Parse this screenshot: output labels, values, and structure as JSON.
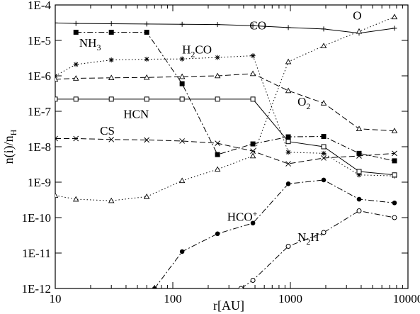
{
  "chart_data": {
    "type": "line",
    "xlabel": "r[AU]",
    "ylabel": "n(i)/n",
    "ylabel_sub": "H",
    "xscale": "log",
    "yscale": "log",
    "xlim": [
      10,
      10000
    ],
    "ylim": [
      1e-12,
      0.0001
    ],
    "x_ticks": [
      10,
      100,
      1000,
      10000
    ],
    "x_tick_labels": [
      "10",
      "100",
      "1000",
      "10000"
    ],
    "y_ticks": [
      1e-12,
      1e-11,
      1e-10,
      1e-09,
      1e-08,
      1e-07,
      1e-06,
      1e-05,
      0.0001
    ],
    "y_tick_labels": [
      "1E-12",
      "1E-11",
      "1E-10",
      "1E-9",
      "1E-8",
      "1E-7",
      "1E-6",
      "1E-5",
      "1E-4"
    ],
    "grid": false,
    "legend": "inline labels",
    "series": [
      {
        "name": "CO",
        "label_parts": [
          [
            "CO",
            ""
          ]
        ],
        "marker": "plus",
        "dash": "solid",
        "x": [
          10,
          15,
          30,
          60,
          120,
          240,
          480,
          960,
          1920,
          3840,
          7680
        ],
        "y": [
          3.1e-05,
          3e-05,
          2.95e-05,
          2.9e-05,
          2.85e-05,
          2.8e-05,
          2.6e-05,
          2.3e-05,
          2.1e-05,
          1.6e-05,
          2.2e-05
        ]
      },
      {
        "name": "O",
        "label_parts": [
          [
            "O",
            ""
          ]
        ],
        "marker": "triangle",
        "dash": "dotted",
        "x": [
          10,
          15,
          30,
          60,
          120,
          240,
          480,
          960,
          1920,
          3840,
          7680
        ],
        "y": [
          4.2e-10,
          3.3e-10,
          3e-10,
          3.9e-10,
          1.1e-09,
          2.3e-09,
          5.5e-09,
          2.5e-06,
          7e-06,
          1.8e-05,
          4.6e-05
        ]
      },
      {
        "name": "NH3",
        "label_parts": [
          [
            "NH",
            ""
          ],
          [
            "3",
            "sub"
          ]
        ],
        "marker": "filled-square",
        "dash": "dashdot",
        "x": [
          15,
          30,
          60,
          120,
          240,
          480,
          960,
          1920,
          3840,
          7680
        ],
        "y": [
          1.7e-05,
          1.7e-05,
          1.7e-05,
          6e-07,
          6e-09,
          1.2e-08,
          1.9e-08,
          1.95e-08,
          6.5e-09,
          4e-09
        ]
      },
      {
        "name": "H2CO",
        "label_parts": [
          [
            "H",
            ""
          ],
          [
            "2",
            "sub"
          ],
          [
            "CO",
            ""
          ]
        ],
        "marker": "star",
        "dash": "dotted",
        "x": [
          10,
          15,
          30,
          60,
          120,
          240,
          480,
          960,
          1920,
          3840,
          7680
        ],
        "y": [
          1e-06,
          2.1e-06,
          2.8e-06,
          2.95e-06,
          3e-06,
          3.3e-06,
          3.7e-06,
          7e-09,
          6.5e-09,
          1.6e-09,
          1.5e-09
        ]
      },
      {
        "name": "O2",
        "label_parts": [
          [
            "O",
            ""
          ],
          [
            "2",
            "sub"
          ]
        ],
        "marker": "triangle",
        "dash": "dashed",
        "x": [
          10,
          15,
          30,
          60,
          120,
          240,
          480,
          960,
          1920,
          3840,
          7680
        ],
        "y": [
          8e-07,
          8.5e-07,
          8.8e-07,
          9e-07,
          9.5e-07,
          1e-06,
          1.15e-06,
          3.8e-07,
          1.7e-07,
          3.2e-08,
          2.8e-08
        ]
      },
      {
        "name": "HCN",
        "label_parts": [
          [
            "HCN",
            ""
          ]
        ],
        "marker": "open-square",
        "dash": "solid",
        "x": [
          10,
          15,
          30,
          60,
          120,
          240,
          480,
          960,
          1920,
          3840,
          7680
        ],
        "y": [
          2.2e-07,
          2.2e-07,
          2.2e-07,
          2.2e-07,
          2.2e-07,
          2.2e-07,
          2.2e-07,
          1.4e-08,
          1e-08,
          2e-09,
          1.6e-09
        ]
      },
      {
        "name": "CS",
        "label_parts": [
          [
            "CS",
            ""
          ]
        ],
        "marker": "x",
        "dash": "dashed",
        "x": [
          10,
          15,
          30,
          60,
          120,
          240,
          480,
          960,
          1920,
          3840,
          7680
        ],
        "y": [
          1.7e-08,
          1.7e-08,
          1.6e-08,
          1.55e-08,
          1.45e-08,
          1.25e-08,
          7.5e-09,
          3.3e-09,
          4.8e-09,
          5.5e-09,
          6.5e-09
        ]
      },
      {
        "name": "HCO+",
        "label_parts": [
          [
            "HCO",
            ""
          ],
          [
            "+",
            "sup"
          ]
        ],
        "marker": "filled-circle",
        "dash": "dashdot",
        "x": [
          70,
          120,
          240,
          480,
          960,
          1920,
          3840,
          7680
        ],
        "y": [
          1e-12,
          1.1e-11,
          3.5e-11,
          7e-11,
          9e-10,
          1.15e-09,
          3.3e-10,
          2.6e-10
        ]
      },
      {
        "name": "N2H+",
        "label_parts": [
          [
            "N",
            ""
          ],
          [
            "2",
            "sub"
          ],
          [
            "H",
            ""
          ],
          [
            "+",
            "sup"
          ]
        ],
        "marker": "open-circle",
        "dash": "dashdot",
        "x": [
          380,
          480,
          960,
          1920,
          3840,
          7680
        ],
        "y": [
          1e-12,
          1.7e-12,
          1.55e-11,
          3.8e-11,
          1.55e-10,
          1e-10
        ]
      }
    ]
  }
}
